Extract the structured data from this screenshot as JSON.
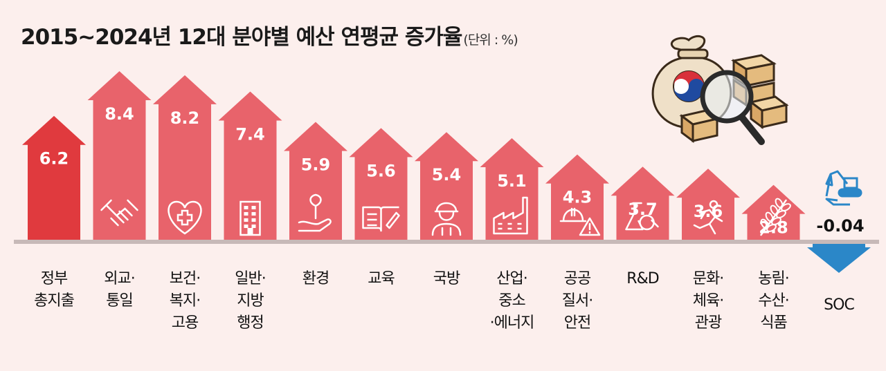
{
  "title": "2015~2024년 12대 분야별 예산 연평균 증가율",
  "unit": "(단위 : %)",
  "colors": {
    "background": "#fcefed",
    "highlight_bar": "#e03a3e",
    "bar": "#e8636b",
    "negative_bar": "#2b87c8",
    "baseline": "#c7b9b8"
  },
  "chart_data": {
    "type": "bar",
    "title": "2015~2024년 12대 분야별 예산 연평균 증가율",
    "unit": "%",
    "ylim": [
      -1,
      9
    ],
    "grid": false,
    "legend": "none",
    "highlight_category": "정부\n총지출",
    "categories": [
      "정부\n총지출",
      "외교·\n통일",
      "보건·\n복지·\n고용",
      "일반·\n지방\n행정",
      "환경",
      "교육",
      "국방",
      "산업·\n중소\n·에너지",
      "공공\n질서·\n안전",
      "R&D",
      "문화·\n체육·\n관광",
      "농림·\n수산·\n식품",
      "SOC"
    ],
    "values": [
      6.2,
      8.4,
      8.2,
      7.4,
      5.9,
      5.6,
      5.4,
      5.1,
      4.3,
      3.7,
      3.6,
      2.8,
      -0.04
    ],
    "value_labels": [
      "6.2",
      "8.4",
      "8.2",
      "7.4",
      "5.9",
      "5.6",
      "5.4",
      "5.1",
      "4.3",
      "3.7",
      "3.6",
      "2.8",
      "-0.04"
    ],
    "icons": [
      "",
      "handshake-icon",
      "heart-cross-icon",
      "building-icon",
      "plant-hand-icon",
      "book-pen-icon",
      "soldier-icon",
      "factory-icon",
      "hardhat-warning-icon",
      "flask-magnifier-icon",
      "runner-icon",
      "wheat-icon",
      "excavator-icon"
    ]
  },
  "illustration": "money-bag-gold-magnifier-icon"
}
